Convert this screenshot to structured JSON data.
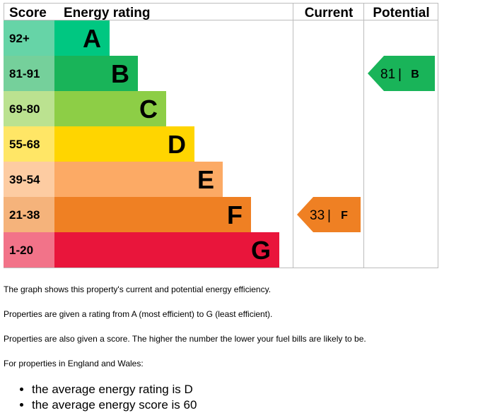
{
  "chart_data": {
    "type": "bar",
    "headers": {
      "score": "Score",
      "rating": "Energy rating",
      "current": "Current",
      "potential": "Potential"
    },
    "bands": [
      {
        "letter": "A",
        "range": "92+",
        "color": "#00c781",
        "score_bg": "#66d4a7"
      },
      {
        "letter": "B",
        "range": "81-91",
        "color": "#19b459",
        "score_bg": "#75d09b"
      },
      {
        "letter": "C",
        "range": "69-80",
        "color": "#8dce46",
        "score_bg": "#bbe290"
      },
      {
        "letter": "D",
        "range": "55-68",
        "color": "#ffd500",
        "score_bg": "#ffe666"
      },
      {
        "letter": "E",
        "range": "39-54",
        "color": "#fcaa65",
        "score_bg": "#fdcca2"
      },
      {
        "letter": "F",
        "range": "21-38",
        "color": "#ef8023",
        "score_bg": "#f5b37b"
      },
      {
        "letter": "G",
        "range": "1-20",
        "color": "#e9153b",
        "score_bg": "#f27389"
      }
    ],
    "current": {
      "score": "33",
      "letter": "F",
      "separator": "|",
      "band_index": 5,
      "color": "#ef8023"
    },
    "potential": {
      "score": "81",
      "letter": "B",
      "separator": "|",
      "band_index": 1,
      "color": "#19b459"
    }
  },
  "description": {
    "p1": "The graph shows this property's current and potential energy efficiency.",
    "p2": "Properties are given a rating from A (most efficient) to G (least efficient).",
    "p3": "Properties are also given a score. The higher the number the lower your fuel bills are likely to be.",
    "p4": "For properties in England and Wales:",
    "bullets": [
      "the average energy rating is D",
      "the average energy score is 60"
    ]
  }
}
